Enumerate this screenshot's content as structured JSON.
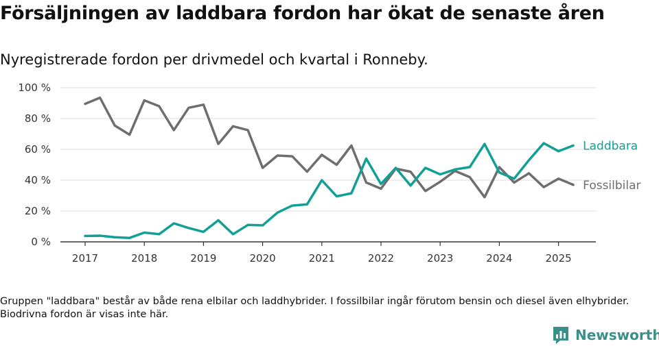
{
  "title": "Försäljningen av laddbara fordon har ökat de senaste åren",
  "subtitle": "Nyregistrerade fordon per drivmedel och kvartal i Ronneby.",
  "note": "Gruppen \"laddbara\" består av både rena elbilar och laddhybrider. I fossilbilar ingår förutom bensin och diesel även elhybrider. Biodrivna fordon är visas inte här.",
  "brand": "Newsworthy",
  "colors": {
    "laddbara": "#10a095",
    "fossilbilar": "#6e6e70",
    "brand": "#3a8f8a"
  },
  "chart_data": {
    "type": "line",
    "x_ticks": [
      "2017",
      "2018",
      "2019",
      "2020",
      "2021",
      "2022",
      "2023",
      "2024",
      "2025"
    ],
    "y_ticks": [
      "0 %",
      "20 %",
      "40 %",
      "60 %",
      "80 %",
      "100 %"
    ],
    "ylim": [
      0,
      100
    ],
    "x_start_year": 2017,
    "grid": true,
    "x": [
      "2017 Q1",
      "2017 Q2",
      "2017 Q3",
      "2017 Q4",
      "2018 Q1",
      "2018 Q2",
      "2018 Q3",
      "2018 Q4",
      "2019 Q1",
      "2019 Q2",
      "2019 Q3",
      "2019 Q4",
      "2020 Q1",
      "2020 Q2",
      "2020 Q3",
      "2020 Q4",
      "2021 Q1",
      "2021 Q2",
      "2021 Q3",
      "2021 Q4",
      "2022 Q1",
      "2022 Q2",
      "2022 Q3",
      "2022 Q4",
      "2023 Q1",
      "2023 Q2",
      "2023 Q3",
      "2023 Q4",
      "2024 Q1",
      "2024 Q2",
      "2024 Q3",
      "2024 Q4",
      "2025 Q1",
      "2025 Q2"
    ],
    "series": [
      {
        "name": "Fossilbilar",
        "color": "#6e6e70",
        "values": [
          89.5,
          93.5,
          75.5,
          69.5,
          91.8,
          88.0,
          72.5,
          87.0,
          89.0,
          63.5,
          75.0,
          72.5,
          48.0,
          56.0,
          55.5,
          45.5,
          56.5,
          50.0,
          62.5,
          38.5,
          34.5,
          47.5,
          45.5,
          33.0,
          39.0,
          46.0,
          42.0,
          29.0,
          48.5,
          38.5,
          44.5,
          35.5,
          41.0,
          37.0
        ]
      },
      {
        "name": "Laddbara",
        "color": "#10a095",
        "values": [
          3.8,
          4.0,
          3.0,
          2.6,
          6.0,
          5.0,
          12.0,
          9.0,
          6.5,
          14.0,
          5.0,
          11.0,
          10.7,
          19.0,
          23.5,
          24.3,
          40.0,
          29.5,
          31.5,
          54.0,
          37.5,
          48.0,
          36.5,
          48.0,
          43.8,
          47.0,
          48.5,
          63.5,
          45.0,
          41.0,
          53.0,
          64.0,
          58.8,
          62.5
        ]
      }
    ]
  }
}
